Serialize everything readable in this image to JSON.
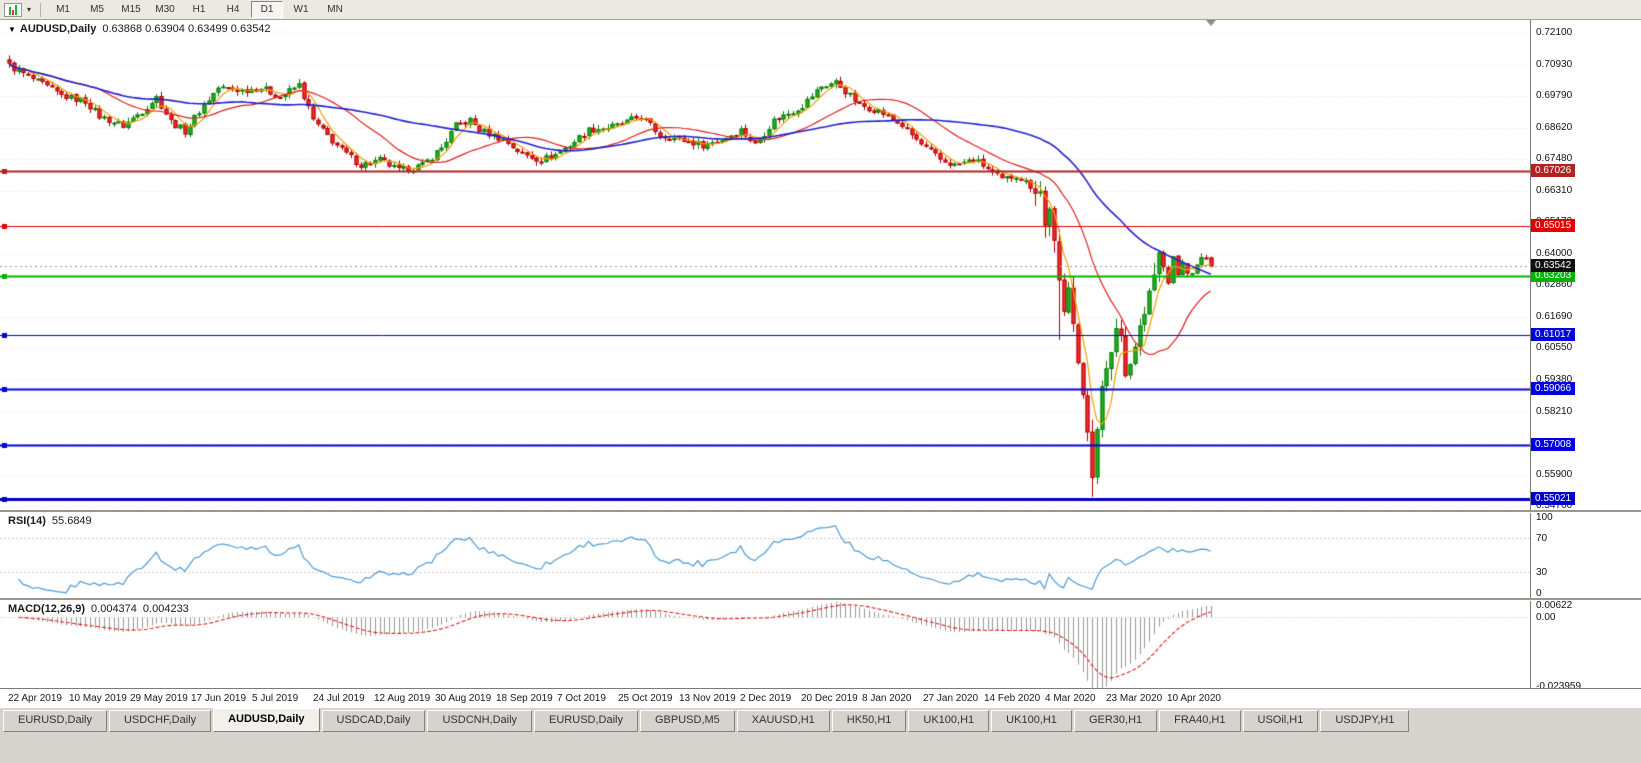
{
  "toolbar": {
    "timeframes": [
      "M1",
      "M5",
      "M15",
      "M30",
      "H1",
      "H4",
      "D1",
      "W1",
      "MN"
    ],
    "active_timeframe": "D1"
  },
  "chart": {
    "title": "AUDUSD,Daily",
    "ohlc_text": "0.63868 0.63904 0.63499 0.63542"
  },
  "rsi_panel": {
    "label": "RSI(14)",
    "value": "55.6849",
    "axis_labels": [
      "100",
      "70",
      "30",
      "0"
    ]
  },
  "macd_panel": {
    "label": "MACD(12,26,9)",
    "value_main": "0.004374",
    "value_signal": "0.004233",
    "axis_labels": [
      "0.00622",
      "0.00",
      "-0.023959"
    ]
  },
  "tabs": {
    "active_index": 2,
    "items": [
      "EURUSD,Daily",
      "USDCHF,Daily",
      "AUDUSD,Daily",
      "USDCAD,Daily",
      "USDCNH,Daily",
      "EURUSD,Daily",
      "GBPUSD,M5",
      "XAUUSD,H1",
      "HK50,H1",
      "UK100,H1",
      "UK100,H1",
      "GER30,H1",
      "FRA40,H1",
      "USOil,H1",
      "USDJPY,H1"
    ]
  },
  "chart_data": {
    "type": "candlestick",
    "symbol": "AUDUSD",
    "timeframe": "Daily",
    "ohlc": {
      "open": 0.63868,
      "high": 0.63904,
      "low": 0.63499,
      "close": 0.63542
    },
    "ylim": [
      0.54614,
      0.72577
    ],
    "y_ticks": [
      "0.72100",
      "0.70930",
      "0.69790",
      "0.68620",
      "0.67480",
      "0.66310",
      "0.65170",
      "0.64000",
      "0.62860",
      "0.61690",
      "0.60550",
      "0.59380",
      "0.58210",
      "0.57040",
      "0.55900",
      "0.54760"
    ],
    "date_labels": [
      "22 Apr 2019",
      "10 May 2019",
      "29 May 2019",
      "17 Jun 2019",
      "5 Jul 2019",
      "24 Jul 2019",
      "12 Aug 2019",
      "30 Aug 2019",
      "18 Sep 2019",
      "7 Oct 2019",
      "25 Oct 2019",
      "13 Nov 2019",
      "2 Dec 2019",
      "20 Dec 2019",
      "8 Jan 2020",
      "27 Jan 2020",
      "14 Feb 2020",
      "4 Mar 2020",
      "23 Mar 2020",
      "10 Apr 2020"
    ],
    "current_price": {
      "label": "0.63542",
      "value": 0.63542,
      "badge_color": "#111111"
    },
    "hlines": [
      {
        "label": "0.67026",
        "value": 0.67026,
        "color": "#b22222",
        "width": 2
      },
      {
        "label": "0.65015",
        "value": 0.65015,
        "color": "#e00000",
        "width": 1
      },
      {
        "label": "0.63203",
        "value": 0.63203,
        "color": "#00b400",
        "width": 2
      },
      {
        "label": "0.61017",
        "value": 0.61017,
        "color": "#0000e0",
        "width": 1
      },
      {
        "label": "0.59066",
        "value": 0.59066,
        "color": "#0000e0",
        "width": 2
      },
      {
        "label": "0.57008",
        "value": 0.57008,
        "color": "#0000e0",
        "width": 2
      },
      {
        "label": "0.55021",
        "value": 0.55021,
        "color": "#0000c8",
        "width": 3
      }
    ],
    "bars": 254,
    "price_anchors": [
      [
        0,
        0.709
      ],
      [
        5,
        0.704
      ],
      [
        11,
        0.698
      ],
      [
        16,
        0.696
      ],
      [
        19,
        0.6905
      ],
      [
        24,
        0.687
      ],
      [
        28,
        0.6925
      ],
      [
        31,
        0.6975
      ],
      [
        34,
        0.6885
      ],
      [
        37,
        0.685
      ],
      [
        40,
        0.6925
      ],
      [
        44,
        0.701
      ],
      [
        49,
        0.7
      ],
      [
        53,
        0.701
      ],
      [
        57,
        0.6975
      ],
      [
        61,
        0.702
      ],
      [
        64,
        0.689
      ],
      [
        66,
        0.685
      ],
      [
        70,
        0.678
      ],
      [
        74,
        0.6725
      ],
      [
        78,
        0.6745
      ],
      [
        82,
        0.6705
      ],
      [
        87,
        0.6725
      ],
      [
        91,
        0.679
      ],
      [
        94,
        0.687
      ],
      [
        97,
        0.689
      ],
      [
        99,
        0.6855
      ],
      [
        104,
        0.682
      ],
      [
        108,
        0.6765
      ],
      [
        112,
        0.6745
      ],
      [
        115,
        0.6765
      ],
      [
        118,
        0.68
      ],
      [
        122,
        0.6855
      ],
      [
        128,
        0.687
      ],
      [
        133,
        0.6905
      ],
      [
        137,
        0.6835
      ],
      [
        141,
        0.682
      ],
      [
        146,
        0.68
      ],
      [
        150,
        0.682
      ],
      [
        154,
        0.6855
      ],
      [
        157,
        0.68
      ],
      [
        161,
        0.689
      ],
      [
        165,
        0.6925
      ],
      [
        167,
        0.6945
      ],
      [
        171,
        0.7015
      ],
      [
        174,
        0.703
      ],
      [
        177,
        0.698
      ],
      [
        179,
        0.6945
      ],
      [
        183,
        0.6925
      ],
      [
        188,
        0.687
      ],
      [
        192,
        0.68
      ],
      [
        196,
        0.6745
      ],
      [
        199,
        0.6725
      ],
      [
        203,
        0.6745
      ],
      [
        205,
        0.6725
      ],
      [
        209,
        0.667
      ],
      [
        212,
        0.669
      ],
      [
        215,
        0.665
      ],
      [
        217,
        0.663
      ],
      [
        218,
        0.65
      ],
      [
        219,
        0.658
      ],
      [
        220,
        0.643
      ],
      [
        221,
        0.628
      ],
      [
        222,
        0.618
      ],
      [
        223,
        0.63
      ],
      [
        224,
        0.617
      ],
      [
        225,
        0.6
      ],
      [
        226,
        0.586
      ],
      [
        227,
        0.575
      ],
      [
        228,
        0.56
      ],
      [
        229,
        0.578
      ],
      [
        230,
        0.59
      ],
      [
        231,
        0.596
      ],
      [
        232,
        0.605
      ],
      [
        233,
        0.613
      ],
      [
        234,
        0.61
      ],
      [
        235,
        0.598
      ],
      [
        236,
        0.6
      ],
      [
        237,
        0.607
      ],
      [
        238,
        0.613
      ],
      [
        239,
        0.618
      ],
      [
        240,
        0.625
      ],
      [
        241,
        0.632
      ],
      [
        242,
        0.64
      ],
      [
        243,
        0.635
      ],
      [
        244,
        0.63
      ],
      [
        245,
        0.638
      ],
      [
        246,
        0.633
      ],
      [
        247,
        0.636
      ],
      [
        249,
        0.632
      ],
      [
        251,
        0.639
      ],
      [
        253,
        0.63542
      ]
    ],
    "spikes": [
      {
        "i": 221,
        "low": 0.6085
      },
      {
        "i": 228,
        "low": 0.551
      }
    ],
    "noise": {
      "amp": 0.0013,
      "amp_volatile": 0.003,
      "wick": 0.0016,
      "wick_volatile": 0.0045,
      "volatile_range": [
        216,
        242
      ]
    },
    "colors": {
      "candle_up_fill": "#22b422",
      "candle_up_stroke": "#0c7a0c",
      "candle_down_fill": "#f03030",
      "candle_down_stroke": "#b00000",
      "grid": "#e3e3e3",
      "price_line": "#999999"
    },
    "moving_averages": [
      {
        "type": "SMA",
        "period": 5,
        "color": "#f0a000"
      },
      {
        "type": "SMA",
        "period": 20,
        "color": "#e02020"
      },
      {
        "type": "SMA",
        "period": 50,
        "color": "#2222cc"
      }
    ],
    "rsi": {
      "period": 14,
      "color": "#4f9bd5",
      "levels": [
        70,
        30
      ],
      "last_value": 55.6849
    },
    "macd": {
      "fast": 12,
      "slow": 26,
      "signal": 9,
      "hist_color": "#999999",
      "signal_color": "#e02020",
      "axis_max": 0.00622,
      "axis_zero": 0.0,
      "axis_min": -0.023959,
      "last_main": 0.004374,
      "last_signal": 0.004233
    }
  }
}
